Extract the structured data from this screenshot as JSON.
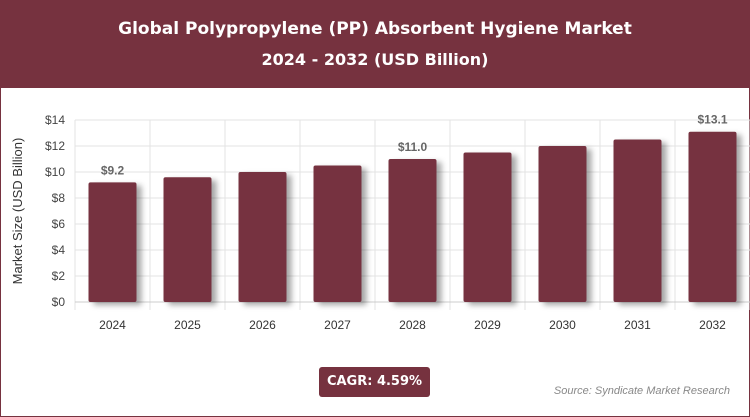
{
  "header": {
    "title": "Global Polypropylene (PP) Absorbent Hygiene Market",
    "subtitle": "2024 - 2032 (USD Billion)"
  },
  "badge": {
    "cagr": "CAGR: 4.59%"
  },
  "source": "Source: Syndicate Market Research",
  "colors": {
    "bar": "#76323f",
    "header": "#76323f"
  },
  "chart_data": {
    "type": "bar",
    "title": "Global Polypropylene (PP) Absorbent Hygiene Market",
    "subtitle": "2024 - 2032 (USD Billion)",
    "xlabel": "",
    "ylabel": "Market Size (USD Billion)",
    "categories": [
      "2024",
      "2025",
      "2026",
      "2027",
      "2028",
      "2029",
      "2030",
      "2031",
      "2032"
    ],
    "values": [
      9.2,
      9.6,
      10.0,
      10.5,
      11.0,
      11.5,
      12.0,
      12.5,
      13.1
    ],
    "data_labels": {
      "0": "$9.2",
      "4": "$11.0",
      "8": "$13.1"
    },
    "yticks": [
      "$0",
      "$2",
      "$4",
      "$6",
      "$8",
      "$10",
      "$12",
      "$14"
    ],
    "ylim": [
      0,
      14
    ],
    "grid": true
  }
}
